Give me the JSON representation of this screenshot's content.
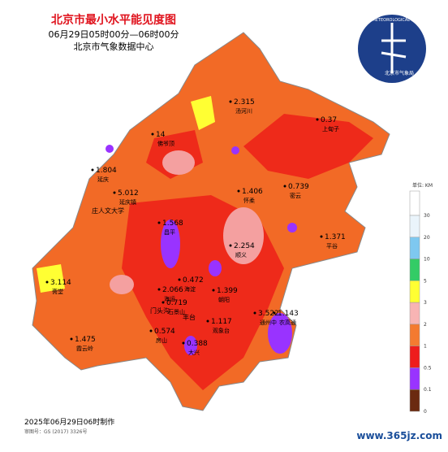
{
  "header": {
    "title": "北京市最小水平能见度图",
    "subtitle": "06月29日05时00分—06时00分",
    "source": "北京市气象数据中心"
  },
  "logo": {
    "text_en": "BEIJING METEOROLOGICAL SERVICE",
    "text_cn": "北京市气象局"
  },
  "legend": {
    "unit": "单位: KM",
    "ticks": [
      30,
      20,
      10,
      5,
      3,
      2,
      1,
      0.5,
      0.1,
      0
    ],
    "colors": [
      "#ffffff",
      "#eaf4fb",
      "#7ec8f0",
      "#33cc66",
      "#ffff33",
      "#f8b4b4",
      "#f47a30",
      "#ee1c1c",
      "#9933ff",
      "#6b2a10"
    ]
  },
  "stations": [
    {
      "value": "2.315",
      "name": "汤河川"
    },
    {
      "value": "0.37",
      "name": "上甸子"
    },
    {
      "value": "14",
      "name": "佛爷顶"
    },
    {
      "value": "1.804",
      "name": "延庆"
    },
    {
      "value": "5.012",
      "name": "延庆镇"
    },
    {
      "value": "1.406",
      "name": "怀柔"
    },
    {
      "value": "0.739",
      "name": "密云"
    },
    {
      "value": "1.568",
      "name": "昌平"
    },
    {
      "value": "2.254",
      "name": "顺义"
    },
    {
      "value": "1.371",
      "name": "平谷"
    },
    {
      "value": "3.114",
      "name": "斋堂"
    },
    {
      "value": "0.472",
      "name": "海淀"
    },
    {
      "value": "2.066",
      "name": "海运"
    },
    {
      "value": "1.399",
      "name": "朝阳"
    },
    {
      "value": "0.719",
      "name": "石景山"
    },
    {
      "value": "3.522",
      "name": "通州中"
    },
    {
      "value": "1.143",
      "name": "农高通"
    },
    {
      "value": "1.475",
      "name": "霞云岭"
    },
    {
      "value": "0.574",
      "name": "房山"
    },
    {
      "value": "0.388",
      "name": "大兴"
    },
    {
      "value": "1.117",
      "name": "观象台"
    }
  ],
  "extra_labels": [
    "庄人文大学",
    "门头沟",
    "丰台"
  ],
  "footer": {
    "made": "2025年06月29日06时制作",
    "approval": "审图号：GS (2017) 3326号"
  },
  "watermark": "www.365jz.com"
}
